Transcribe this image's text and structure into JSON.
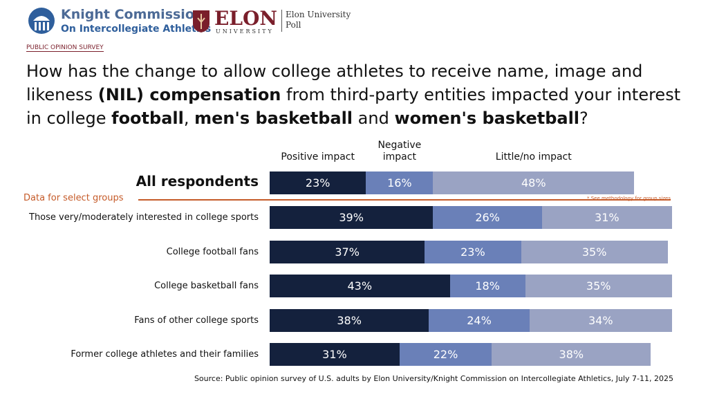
{
  "header": {
    "logo1_line1": "Knight Commission",
    "logo1_line2": "On Intercollegiate Athletics",
    "logo2_name": "ELON",
    "logo2_sub": "UNIVERSITY",
    "logo2_line1": "Elon University",
    "logo2_line2": "Poll"
  },
  "chart_data": {
    "type": "bar",
    "orientation": "horizontal",
    "stacked": true,
    "kicker": "PUBLIC OPINION SURVEY",
    "title_runs": [
      {
        "text": "How has the change to allow college athletes to receive name, image and likeness ",
        "bold": false
      },
      {
        "text": "(NIL) compensation",
        "bold": true
      },
      {
        "text": " from third-party entities impacted your interest in college ",
        "bold": false
      },
      {
        "text": "football",
        "bold": true
      },
      {
        "text": ", ",
        "bold": false
      },
      {
        "text": "men's basketball",
        "bold": true
      },
      {
        "text": " and ",
        "bold": false
      },
      {
        "text": "women's basketball",
        "bold": true
      },
      {
        "text": "?",
        "bold": false
      }
    ],
    "categories": [
      "All respondents",
      "Those very/moderately interested in college sports",
      "College football fans",
      "College basketball fans",
      "Fans of other college sports",
      "Former college athletes and their families"
    ],
    "series": [
      {
        "name": "Positive impact",
        "color": "#14213d",
        "values": [
          23,
          39,
          37,
          43,
          38,
          31
        ],
        "value_labels": [
          "23%",
          "39%",
          "37%",
          "43%",
          "38%",
          "31%"
        ]
      },
      {
        "name": "Negative impact",
        "color": "#6a80b8",
        "values": [
          16,
          26,
          23,
          18,
          24,
          22
        ],
        "value_labels": [
          "16%",
          "26%",
          "23%",
          "18%",
          "24%",
          "22%"
        ]
      },
      {
        "name": "Little/no impact",
        "color": "#9aa3c3",
        "values": [
          48,
          31,
          35,
          35,
          34,
          38
        ],
        "value_labels": [
          "48%",
          "31%",
          "35%",
          "35%",
          "34%",
          "38%"
        ]
      }
    ],
    "xlim": [
      0,
      100
    ],
    "group_label": "Data for select groups",
    "note": "* See methodology for group sizes",
    "source": "Source: Public opinion survey of U.S. adults by Elon University/Knight Commission on Intercollegiate Athletics, July 7-11, 2025"
  }
}
